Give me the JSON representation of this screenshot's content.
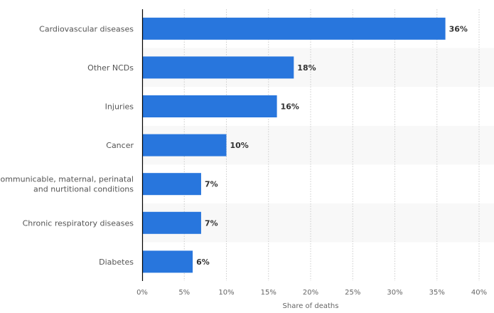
{
  "chart_data": {
    "type": "bar",
    "orientation": "horizontal",
    "categories": [
      "Cardiovascular diseases",
      "Other NCDs",
      "Injuries",
      "Cancer",
      "Communicable, maternal, perinatal and nurtitional conditions",
      "Chronic respiratory diseases",
      "Diabetes"
    ],
    "category_lines": [
      [
        "Cardiovascular diseases"
      ],
      [
        "Other NCDs"
      ],
      [
        "Injuries"
      ],
      [
        "Cancer"
      ],
      [
        "Communicable, maternal, perinatal",
        "and nurtitional conditions"
      ],
      [
        "Chronic respiratory diseases"
      ],
      [
        "Diabetes"
      ]
    ],
    "values": [
      36,
      18,
      16,
      10,
      7,
      7,
      6
    ],
    "data_labels": [
      "36%",
      "18%",
      "16%",
      "10%",
      "7%",
      "7%",
      "6%"
    ],
    "xlabel": "Share of deaths",
    "ylabel": "",
    "xlim": [
      0,
      40
    ],
    "ticks": [
      0,
      5,
      10,
      15,
      20,
      25,
      30,
      35,
      40
    ],
    "tick_labels": [
      "0%",
      "5%",
      "10%",
      "15%",
      "20%",
      "25%",
      "30%",
      "35%",
      "40%"
    ],
    "grid": true,
    "bar_color": "#2876dd",
    "band_color": "#f8f8f8"
  }
}
